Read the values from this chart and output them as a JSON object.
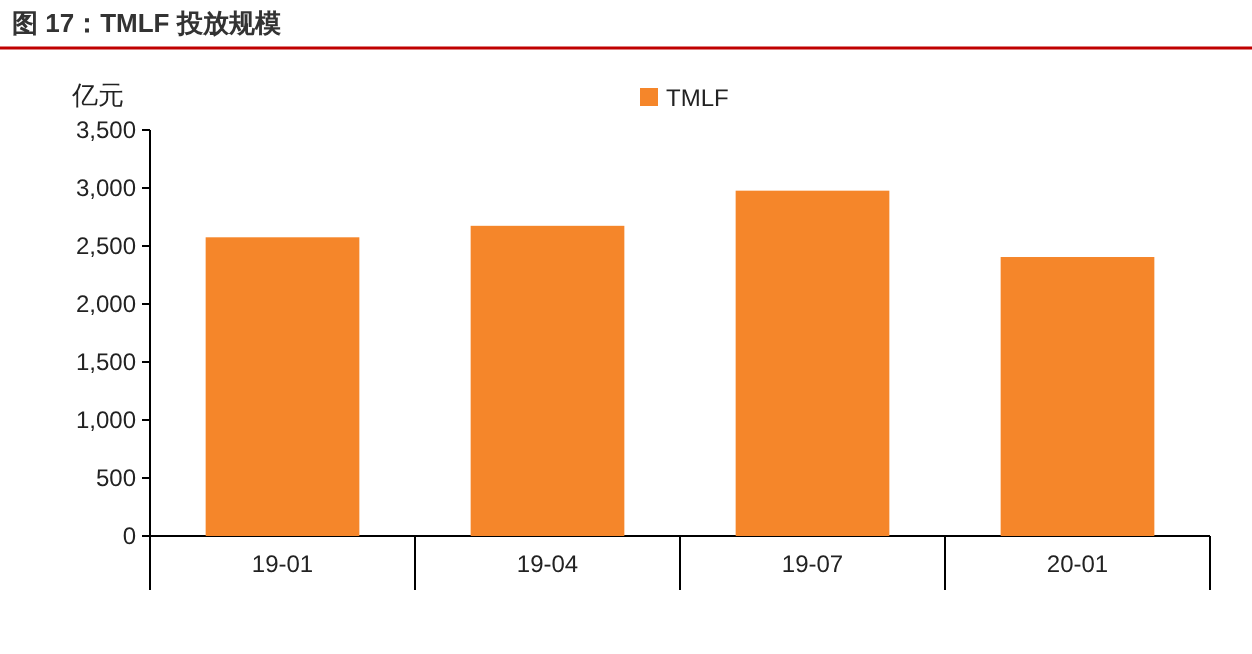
{
  "chart_data": {
    "type": "bar",
    "title": "图 17：TMLF 投放规模",
    "ylabel": "亿元",
    "categories": [
      "19-01",
      "19-04",
      "19-07",
      "20-01"
    ],
    "series": [
      {
        "name": "TMLF",
        "color": "#f5862a",
        "values": [
          2575,
          2674,
          2977,
          2405
        ]
      }
    ],
    "ylim": [
      0,
      3500
    ],
    "yticks": [
      {
        "value": 0,
        "label": "0"
      },
      {
        "value": 500,
        "label": "500"
      },
      {
        "value": 1000,
        "label": "1,000"
      },
      {
        "value": 1500,
        "label": "1,500"
      },
      {
        "value": 2000,
        "label": "2,000"
      },
      {
        "value": 2500,
        "label": "2,500"
      },
      {
        "value": 3000,
        "label": "3,000"
      },
      {
        "value": 3500,
        "label": "3,500"
      }
    ],
    "grid": false,
    "legend": "top"
  }
}
